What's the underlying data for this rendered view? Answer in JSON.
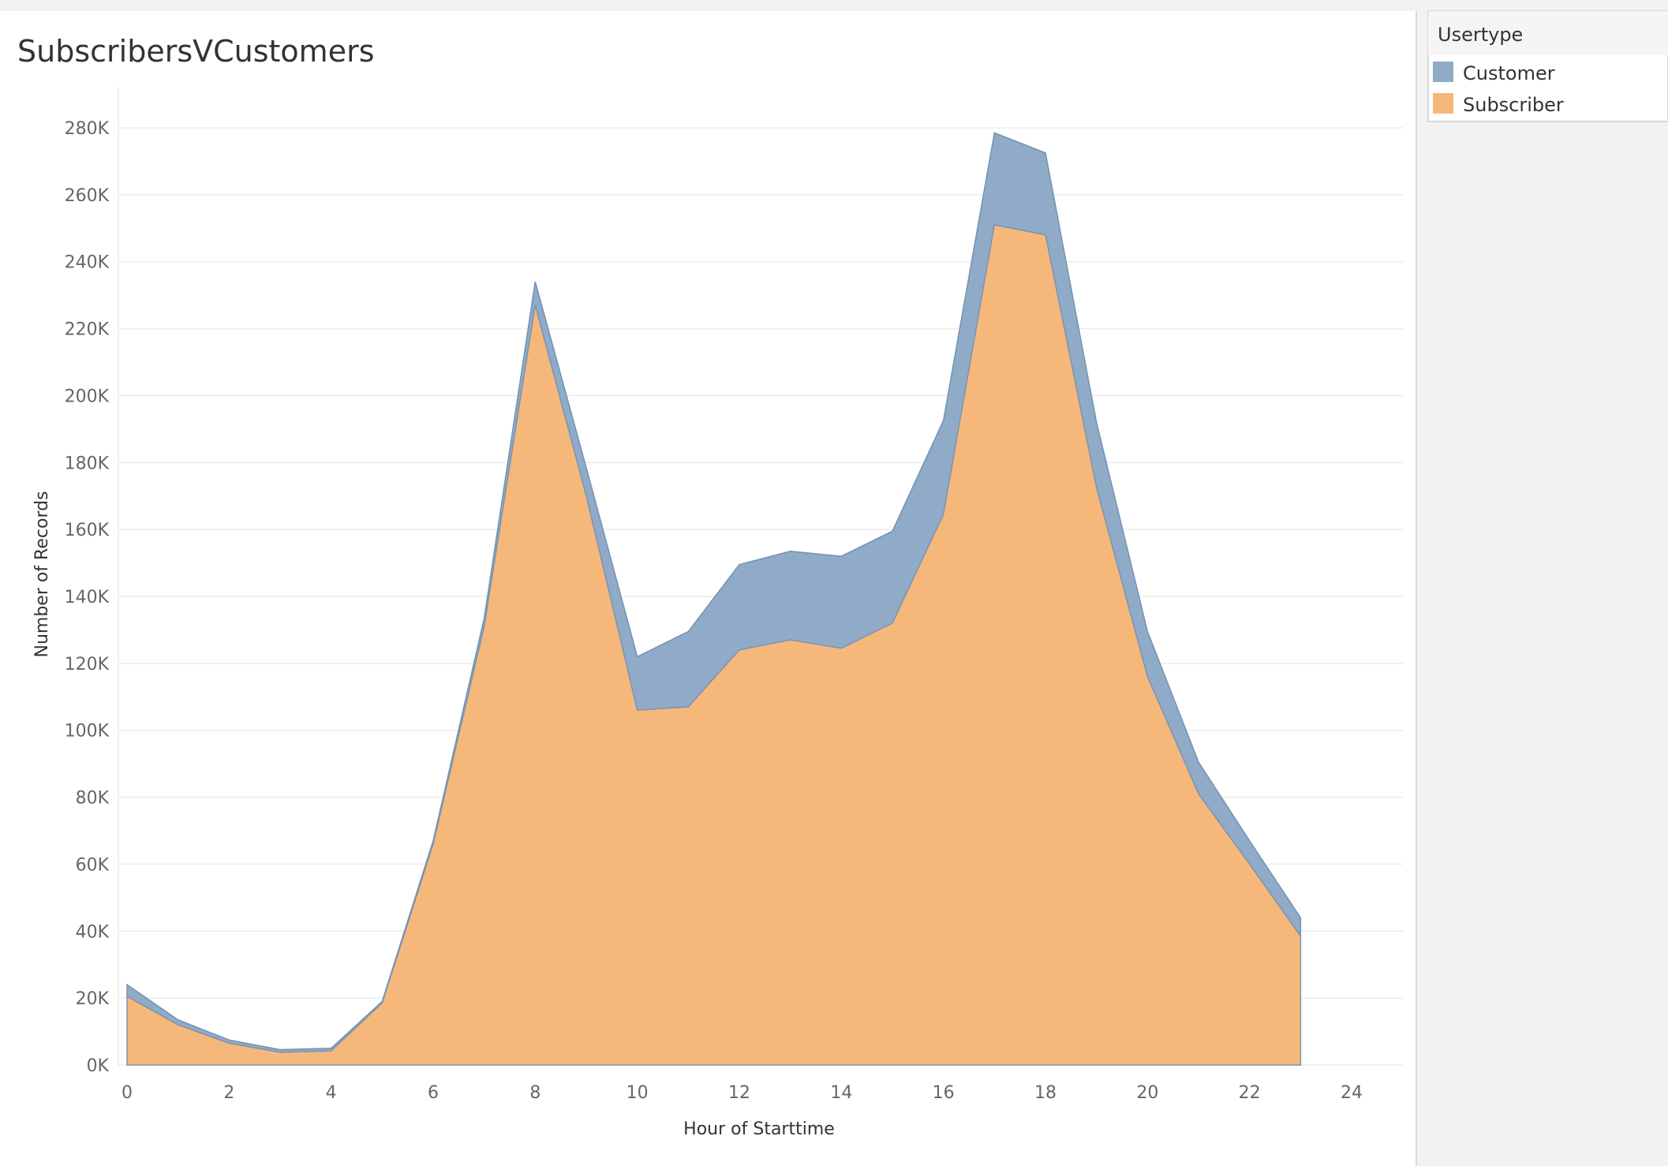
{
  "chart_data": {
    "type": "area",
    "stacked": true,
    "title": "SubscribersVCustomers",
    "xlabel": "Hour of Starttime",
    "ylabel": "Number of Records",
    "xlim": [
      0,
      24
    ],
    "ylim": [
      0,
      280000
    ],
    "x_ticks": [
      "0",
      "2",
      "4",
      "6",
      "8",
      "10",
      "12",
      "14",
      "16",
      "18",
      "20",
      "22",
      "24"
    ],
    "y_ticks": [
      "0K",
      "20K",
      "40K",
      "60K",
      "80K",
      "100K",
      "120K",
      "140K",
      "160K",
      "180K",
      "200K",
      "220K",
      "240K",
      "260K",
      "280K"
    ],
    "grid": true,
    "legend_position": "right",
    "legend_title": "Usertype",
    "x": [
      0,
      1,
      2,
      3,
      4,
      5,
      6,
      7,
      8,
      9,
      10,
      11,
      12,
      13,
      14,
      15,
      16,
      17,
      18,
      19,
      20,
      21,
      22,
      23
    ],
    "series": [
      {
        "name": "Subscriber",
        "color": "#f5b87a",
        "values": [
          20500,
          12000,
          6500,
          3800,
          4200,
          18500,
          66000,
          131000,
          227000,
          170000,
          106000,
          107000,
          124000,
          127000,
          124500,
          132000,
          164500,
          251000,
          248000,
          172500,
          116000,
          81000,
          60000,
          38500
        ]
      },
      {
        "name": "Customer",
        "color": "#8fabc8",
        "values": [
          3500,
          1500,
          1000,
          800,
          800,
          500,
          1000,
          2500,
          7000,
          8500,
          16000,
          22500,
          25500,
          26500,
          27500,
          27500,
          28000,
          27500,
          24500,
          19500,
          13500,
          9500,
          7000,
          5500
        ]
      }
    ]
  }
}
